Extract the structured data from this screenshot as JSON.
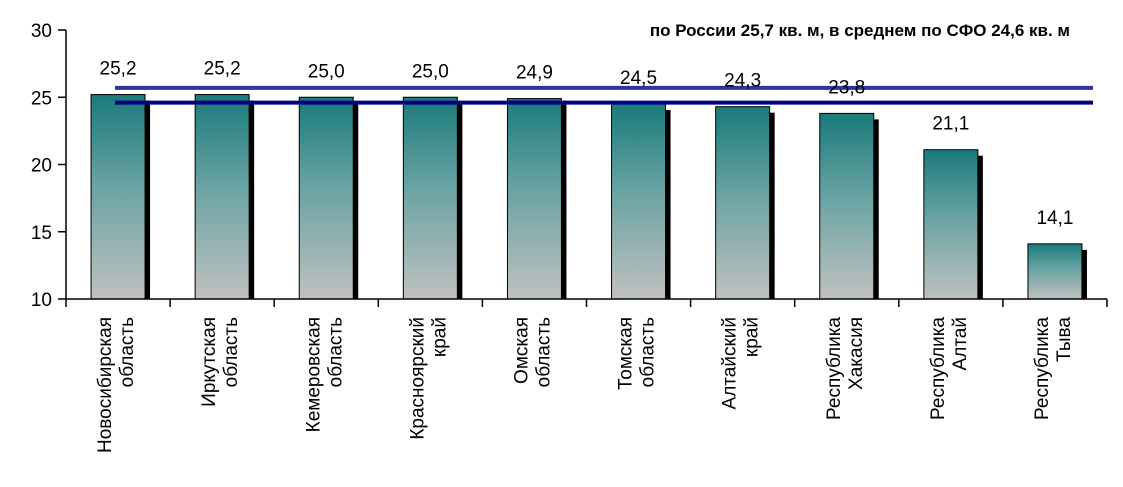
{
  "chart_data": {
    "type": "bar",
    "title": "",
    "annotation": "по России 25,7 кв. м,  в среднем по СФО 24,6 кв. м",
    "xlabel": "",
    "ylabel": "",
    "ylim": [
      10,
      30
    ],
    "yticks": [
      "10",
      "15",
      "20",
      "25",
      "30"
    ],
    "categories": [
      [
        "Новосибирская",
        "область"
      ],
      [
        "Иркутская",
        "область"
      ],
      [
        "Кемеровская",
        "область"
      ],
      [
        "Красноярский",
        "край"
      ],
      [
        "Омская",
        "область"
      ],
      [
        "Томская",
        "область"
      ],
      [
        "Алтайский",
        "край"
      ],
      [
        "Республика",
        "Хакасия"
      ],
      [
        "Республика",
        "Алтай"
      ],
      [
        "Республика",
        "Тыва"
      ]
    ],
    "values": [
      25.2,
      25.2,
      25.0,
      25.0,
      24.9,
      24.5,
      24.3,
      23.8,
      21.1,
      14.1
    ],
    "value_labels": [
      "25,2",
      "25,2",
      "25,0",
      "25,0",
      "24,9",
      "24,5",
      "24,3",
      "23,8",
      "21,1",
      "14,1"
    ],
    "reference_lines": [
      {
        "name": "по России",
        "value": 25.7,
        "color": "#333399"
      },
      {
        "name": "в среднем по СФО",
        "value": 24.6,
        "color": "#000080"
      }
    ],
    "bar_color_top": "#1a7a7a",
    "bar_color_bottom": "#c0c0c0",
    "grid": false,
    "legend": "none"
  }
}
